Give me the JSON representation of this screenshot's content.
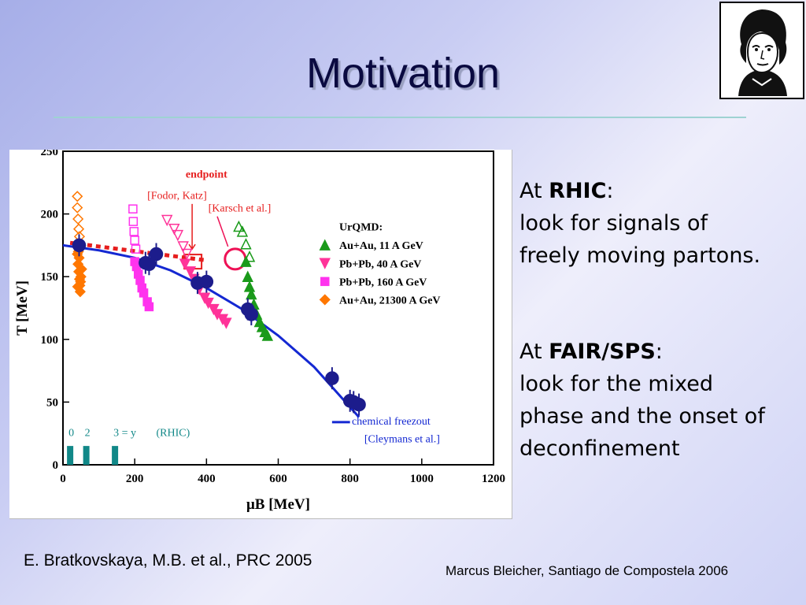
{
  "slide": {
    "title": "Motivation",
    "citation": "E. Bratkovskaya, M.B. et al., PRC 2005",
    "footer": "Marcus Bleicher, Santiago de Compostela 2006"
  },
  "rhic_block": {
    "prefix": "At ",
    "name": "RHIC",
    "suffix": ":",
    "lines": [
      "look for signals of",
      "freely moving partons."
    ]
  },
  "fair_block": {
    "prefix": "At ",
    "name": "FAIR/SPS",
    "suffix": ":",
    "lines": [
      "look for the mixed",
      "phase and the onset of",
      "deconfinement"
    ]
  },
  "chart_data": {
    "type": "scatter",
    "xlabel": "μB [MeV]",
    "ylabel": "T [MeV]",
    "xlim": [
      0,
      1200
    ],
    "ylim": [
      0,
      250
    ],
    "x_ticks": [
      "0",
      "200",
      "400",
      "600",
      "800",
      "1000",
      "1200"
    ],
    "y_ticks": [
      "0",
      "50",
      "100",
      "150",
      "200",
      "250"
    ],
    "legend_title": "UrQMD:",
    "series": [
      {
        "name": "Au+Au, 11 A GeV",
        "marker": "triangle-up",
        "color": "#1a9a1a",
        "filled": [
          [
            510,
            162
          ],
          [
            515,
            150
          ],
          [
            520,
            142
          ],
          [
            525,
            136
          ],
          [
            532,
            128
          ],
          [
            540,
            120
          ],
          [
            548,
            114
          ],
          [
            555,
            110
          ],
          [
            563,
            106
          ],
          [
            570,
            103
          ]
        ],
        "open": [
          [
            490,
            190
          ],
          [
            500,
            186
          ],
          [
            510,
            176
          ],
          [
            520,
            166
          ]
        ]
      },
      {
        "name": "Pb+Pb, 40 A GeV",
        "marker": "triangle-down",
        "color": "#ff3399",
        "filled": [
          [
            340,
            160
          ],
          [
            355,
            154
          ],
          [
            365,
            148
          ],
          [
            380,
            140
          ],
          [
            395,
            133
          ],
          [
            405,
            129
          ],
          [
            420,
            124
          ],
          [
            430,
            120
          ],
          [
            445,
            116
          ],
          [
            455,
            113
          ]
        ],
        "open": [
          [
            290,
            195
          ],
          [
            310,
            188
          ],
          [
            320,
            183
          ],
          [
            335,
            174
          ],
          [
            345,
            168
          ]
        ]
      },
      {
        "name": "Pb+Pb, 160 A GeV",
        "marker": "square",
        "color": "#ff33ee",
        "filled": [
          [
            200,
            162
          ],
          [
            205,
            158
          ],
          [
            210,
            152
          ],
          [
            215,
            147
          ],
          [
            220,
            141
          ],
          [
            225,
            137
          ],
          [
            235,
            130
          ],
          [
            240,
            126
          ]
        ],
        "open": [
          [
            195,
            204
          ],
          [
            196,
            194
          ],
          [
            198,
            186
          ],
          [
            200,
            179
          ],
          [
            203,
            172
          ]
        ]
      },
      {
        "name": "Au+Au, 21300 A GeV",
        "marker": "diamond",
        "color": "#ff7700",
        "filled": [
          [
            40,
            168
          ],
          [
            42,
            160
          ],
          [
            44,
            154
          ],
          [
            46,
            148
          ],
          [
            47,
            143
          ],
          [
            48,
            138
          ],
          [
            50,
            150
          ],
          [
            45,
            165
          ],
          [
            43,
            170
          ],
          [
            49,
            146
          ],
          [
            52,
            156
          ],
          [
            41,
            142
          ]
        ],
        "open": [
          [
            40,
            214
          ],
          [
            40,
            205
          ],
          [
            42,
            196
          ],
          [
            44,
            188
          ],
          [
            46,
            182
          ]
        ]
      },
      {
        "name": "chemical freezout",
        "marker": "line",
        "color": "#1428d2",
        "curve": [
          [
            0,
            175
          ],
          [
            100,
            171
          ],
          [
            200,
            165
          ],
          [
            300,
            155
          ],
          [
            400,
            141
          ],
          [
            500,
            124
          ],
          [
            600,
            103
          ],
          [
            700,
            78
          ],
          [
            750,
            62
          ],
          [
            800,
            46
          ],
          [
            825,
            38
          ]
        ]
      },
      {
        "name": "data",
        "marker": "circle",
        "color": "#1c1c8c",
        "points": [
          [
            45,
            175
          ],
          [
            230,
            161
          ],
          [
            240,
            160
          ],
          [
            260,
            168
          ],
          [
            375,
            145
          ],
          [
            400,
            146
          ],
          [
            515,
            124
          ],
          [
            525,
            120
          ],
          [
            750,
            69
          ],
          [
            800,
            51
          ],
          [
            810,
            50
          ],
          [
            825,
            48
          ]
        ]
      }
    ],
    "annotations": {
      "endpoint": "endpoint",
      "fodor": "[Fodor, Katz]",
      "karsch": "[Karsch et al.]",
      "legend_freezout": "chemical freezout",
      "cleymans": "[Cleymans et al.]",
      "rhic_label_0": "0",
      "rhic_label_2": "2",
      "rhic_label_3": "3 = y",
      "rhic_label": "(RHIC)"
    },
    "critical_line": [
      [
        20,
        177
      ],
      [
        400,
        163
      ]
    ],
    "endpoint_fodor": [
      360,
      162
    ],
    "endpoint_karsch": [
      480,
      164
    ],
    "rhic_bars": [
      20,
      65,
      145
    ],
    "colors": {
      "axis": "#000000",
      "critical_line": "#e61e1e",
      "endpoint_marker": "#ee1155",
      "rhic_bar": "#118888"
    }
  }
}
